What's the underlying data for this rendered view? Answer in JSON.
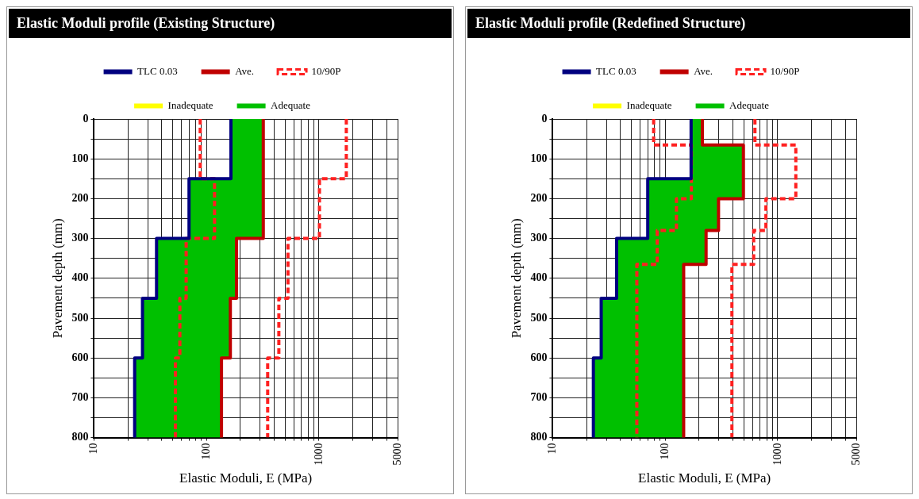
{
  "chart_data": [
    {
      "type": "line",
      "title": "Elastic Moduli profile (Existing Structure)",
      "xlabel": "Elastic Moduli, E (MPa)",
      "ylabel": "Pavement depth (mm)",
      "log": "x",
      "grid": true,
      "legend": "top",
      "xlim": [
        10,
        5000
      ],
      "ylim": [
        800,
        0
      ],
      "xticks": [
        10,
        {
          "value": 20,
          "label": null
        },
        {
          "value": 30,
          "label": null
        },
        {
          "value": 40,
          "label": null
        },
        {
          "value": 50,
          "label": null
        },
        {
          "value": 60,
          "label": null
        },
        {
          "value": 70,
          "label": null
        },
        {
          "value": 80,
          "label": null
        },
        {
          "value": 90,
          "label": null
        },
        100,
        {
          "value": 200,
          "label": null
        },
        {
          "value": 300,
          "label": null
        },
        {
          "value": 400,
          "label": null
        },
        {
          "value": 500,
          "label": null
        },
        {
          "value": 600,
          "label": null
        },
        {
          "value": 700,
          "label": null
        },
        {
          "value": 800,
          "label": null
        },
        {
          "value": 900,
          "label": null
        },
        1000,
        {
          "value": 2000,
          "label": null
        },
        {
          "value": 3000,
          "label": null
        },
        {
          "value": 4000,
          "label": null
        },
        5000
      ],
      "yticks": [
        0,
        {
          "value": 50,
          "label": null
        },
        100,
        {
          "value": 150,
          "label": null
        },
        200,
        {
          "value": 250,
          "label": null
        },
        300,
        {
          "value": 350,
          "label": null
        },
        400,
        {
          "value": 450,
          "label": null
        },
        500,
        {
          "value": 550,
          "label": null
        },
        600,
        {
          "value": 650,
          "label": null
        },
        700,
        {
          "value": 750,
          "label": null
        },
        800
      ],
      "series": [
        {
          "name": "TLC 0.03",
          "color": "#000080",
          "x": [
            165,
            165,
            70,
            70,
            36,
            36,
            27,
            27,
            23,
            23
          ],
          "values": [
            0,
            150,
            150,
            300,
            300,
            450,
            450,
            600,
            600,
            800
          ]
        },
        {
          "name": "Ave.",
          "color": "#c00000",
          "x": [
            320,
            320,
            185,
            185,
            163,
            163,
            136,
            136
          ],
          "values": [
            0,
            300,
            300,
            450,
            450,
            600,
            600,
            800
          ]
        },
        {
          "name": "10/90P",
          "color": "#ff2020",
          "line_style": "dashed",
          "x": [
            88,
            88,
            118,
            118,
            66,
            66,
            58,
            58,
            53,
            53
          ],
          "values": [
            0,
            150,
            150,
            300,
            300,
            450,
            450,
            600,
            600,
            800
          ]
        },
        {
          "color": "#ff2020",
          "line_style": "dashed",
          "x": [
            1750,
            1750,
            1010,
            1010,
            530,
            530,
            440,
            440,
            350,
            350
          ],
          "values": [
            0,
            150,
            150,
            300,
            300,
            450,
            450,
            600,
            600,
            800
          ]
        },
        {
          "name": "Inadequate",
          "color": "#ffff00",
          "type": "area"
        },
        {
          "name": "Adequate",
          "color": "#00c000",
          "type": "area",
          "x": [
            165,
            165,
            70,
            70,
            36,
            36,
            27,
            27,
            23,
            23,
            136,
            136,
            163,
            163,
            185,
            185,
            320,
            320
          ],
          "values": [
            0,
            150,
            150,
            300,
            300,
            450,
            450,
            600,
            600,
            800,
            800,
            600,
            600,
            450,
            450,
            300,
            300,
            0
          ]
        }
      ]
    },
    {
      "type": "line",
      "title": "Elastic Moduli profile (Redefined Structure)",
      "xlabel": "Elastic Moduli, E (MPa)",
      "ylabel": "Pavement depth (mm)",
      "log": "x",
      "grid": true,
      "legend": "top",
      "xlim": [
        10,
        5000
      ],
      "ylim": [
        800,
        0
      ],
      "xticks": [
        10,
        {
          "value": 20,
          "label": null
        },
        {
          "value": 30,
          "label": null
        },
        {
          "value": 40,
          "label": null
        },
        {
          "value": 50,
          "label": null
        },
        {
          "value": 60,
          "label": null
        },
        {
          "value": 70,
          "label": null
        },
        {
          "value": 80,
          "label": null
        },
        {
          "value": 90,
          "label": null
        },
        100,
        {
          "value": 200,
          "label": null
        },
        {
          "value": 300,
          "label": null
        },
        {
          "value": 400,
          "label": null
        },
        {
          "value": 500,
          "label": null
        },
        {
          "value": 600,
          "label": null
        },
        {
          "value": 700,
          "label": null
        },
        {
          "value": 800,
          "label": null
        },
        {
          "value": 900,
          "label": null
        },
        1000,
        {
          "value": 2000,
          "label": null
        },
        {
          "value": 3000,
          "label": null
        },
        {
          "value": 4000,
          "label": null
        },
        5000
      ],
      "yticks": [
        0,
        {
          "value": 50,
          "label": null
        },
        100,
        {
          "value": 150,
          "label": null
        },
        200,
        {
          "value": 250,
          "label": null
        },
        300,
        {
          "value": 350,
          "label": null
        },
        400,
        {
          "value": 450,
          "label": null
        },
        500,
        {
          "value": 550,
          "label": null
        },
        600,
        {
          "value": 650,
          "label": null
        },
        700,
        {
          "value": 750,
          "label": null
        },
        800
      ],
      "series": [
        {
          "name": "TLC 0.03",
          "color": "#000080",
          "x": [
            170,
            170,
            70,
            70,
            37,
            37,
            27,
            27,
            23,
            23
          ],
          "values": [
            0,
            150,
            150,
            300,
            300,
            450,
            450,
            600,
            600,
            800
          ]
        },
        {
          "name": "Ave.",
          "color": "#c00000",
          "x": [
            214,
            214,
            496,
            496,
            298,
            298,
            231,
            231,
            146,
            146
          ],
          "values": [
            0,
            65,
            65,
            200,
            200,
            280,
            280,
            365,
            365,
            800
          ]
        },
        {
          "name": "10/90P",
          "color": "#ff2020",
          "line_style": "dashed",
          "x": [
            79,
            79,
            171,
            171,
            126,
            126,
            85,
            85,
            56,
            56
          ],
          "values": [
            0,
            65,
            65,
            200,
            200,
            280,
            280,
            365,
            365,
            800
          ]
        },
        {
          "color": "#ff2020",
          "line_style": "dashed",
          "x": [
            628,
            628,
            1450,
            1450,
            786,
            786,
            612,
            612,
            392,
            392
          ],
          "values": [
            0,
            65,
            65,
            200,
            200,
            280,
            280,
            365,
            365,
            800
          ]
        },
        {
          "name": "Inadequate",
          "color": "#ffff00",
          "type": "area"
        },
        {
          "name": "Adequate",
          "color": "#00c000",
          "type": "area",
          "x": [
            170,
            170,
            70,
            70,
            37,
            37,
            27,
            27,
            23,
            23,
            146,
            146,
            231,
            231,
            298,
            298,
            496,
            496,
            214,
            214
          ],
          "values": [
            0,
            150,
            150,
            300,
            300,
            450,
            450,
            600,
            600,
            800,
            800,
            365,
            365,
            280,
            280,
            200,
            200,
            65,
            65,
            0
          ]
        }
      ]
    }
  ]
}
